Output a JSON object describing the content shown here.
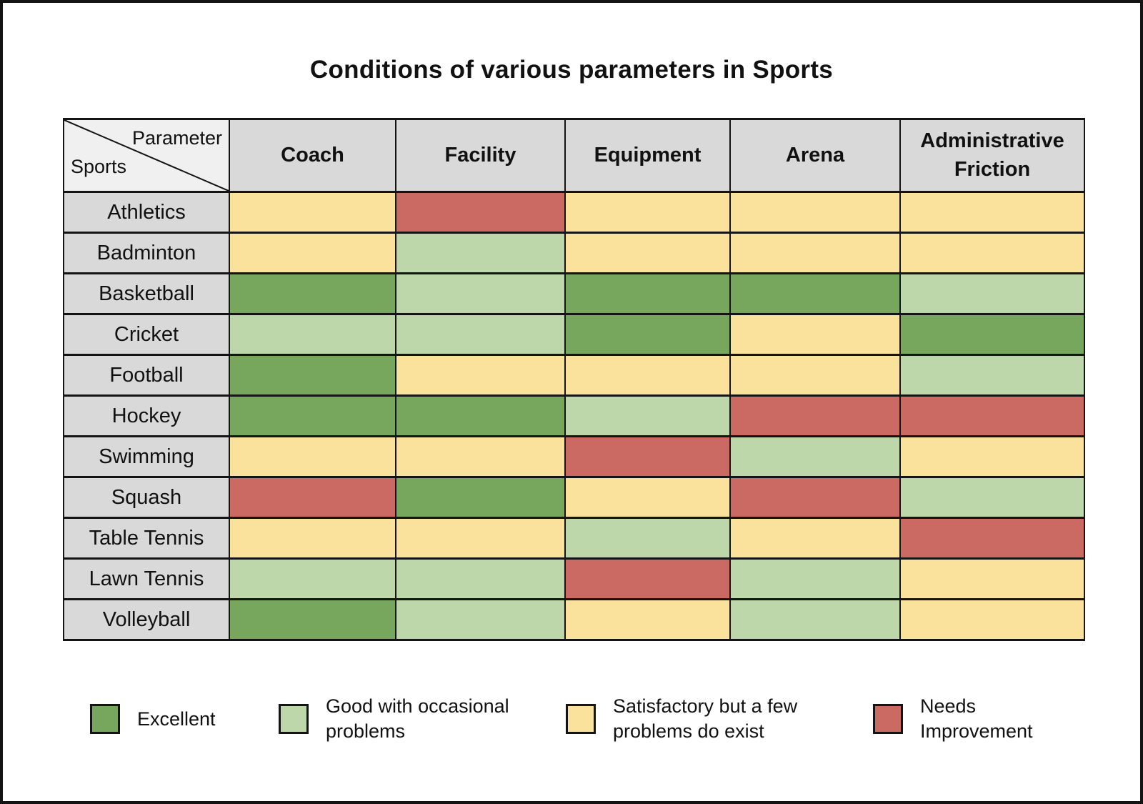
{
  "title": "Conditions of various parameters in Sports",
  "corner": {
    "top_label": "Parameter",
    "bottom_label": "Sports"
  },
  "chart_data": {
    "type": "heatmap",
    "title": "Conditions of various parameters in Sports",
    "columns": [
      "Coach",
      "Facility",
      "Equipment",
      "Arena",
      "Administrative Friction"
    ],
    "rows": [
      {
        "sport": "Athletics",
        "ratings": [
          "satisfactory",
          "needs_improvement",
          "satisfactory",
          "satisfactory",
          "satisfactory"
        ]
      },
      {
        "sport": "Badminton",
        "ratings": [
          "satisfactory",
          "good",
          "satisfactory",
          "satisfactory",
          "satisfactory"
        ]
      },
      {
        "sport": "Basketball",
        "ratings": [
          "excellent",
          "good",
          "excellent",
          "excellent",
          "good"
        ]
      },
      {
        "sport": "Cricket",
        "ratings": [
          "good",
          "good",
          "excellent",
          "satisfactory",
          "excellent"
        ]
      },
      {
        "sport": "Football",
        "ratings": [
          "excellent",
          "satisfactory",
          "satisfactory",
          "satisfactory",
          "good"
        ]
      },
      {
        "sport": "Hockey",
        "ratings": [
          "excellent",
          "excellent",
          "good",
          "needs_improvement",
          "needs_improvement"
        ]
      },
      {
        "sport": "Swimming",
        "ratings": [
          "satisfactory",
          "satisfactory",
          "needs_improvement",
          "good",
          "satisfactory"
        ]
      },
      {
        "sport": "Squash",
        "ratings": [
          "needs_improvement",
          "excellent",
          "satisfactory",
          "needs_improvement",
          "good"
        ]
      },
      {
        "sport": "Table Tennis",
        "ratings": [
          "satisfactory",
          "satisfactory",
          "good",
          "satisfactory",
          "needs_improvement"
        ]
      },
      {
        "sport": "Lawn Tennis",
        "ratings": [
          "good",
          "good",
          "needs_improvement",
          "good",
          "satisfactory"
        ]
      },
      {
        "sport": "Volleyball",
        "ratings": [
          "excellent",
          "good",
          "satisfactory",
          "good",
          "satisfactory"
        ]
      }
    ],
    "legend": [
      {
        "key": "excellent",
        "label": "Excellent",
        "color": "#77A75C"
      },
      {
        "key": "good",
        "label": "Good with occasional problems",
        "color": "#BDD7AA"
      },
      {
        "key": "satisfactory",
        "label": "Satisfactory but a few problems do exist",
        "color": "#FAE29C"
      },
      {
        "key": "needs_improvement",
        "label": "Needs Improvement",
        "color": "#CB6A63"
      }
    ],
    "legend_position": "bottom"
  },
  "colors": {
    "header_background": "#D9D9D9",
    "corner_background": "#F0F0F0",
    "grid_border": "#141414",
    "background": "#FFFFFF"
  }
}
